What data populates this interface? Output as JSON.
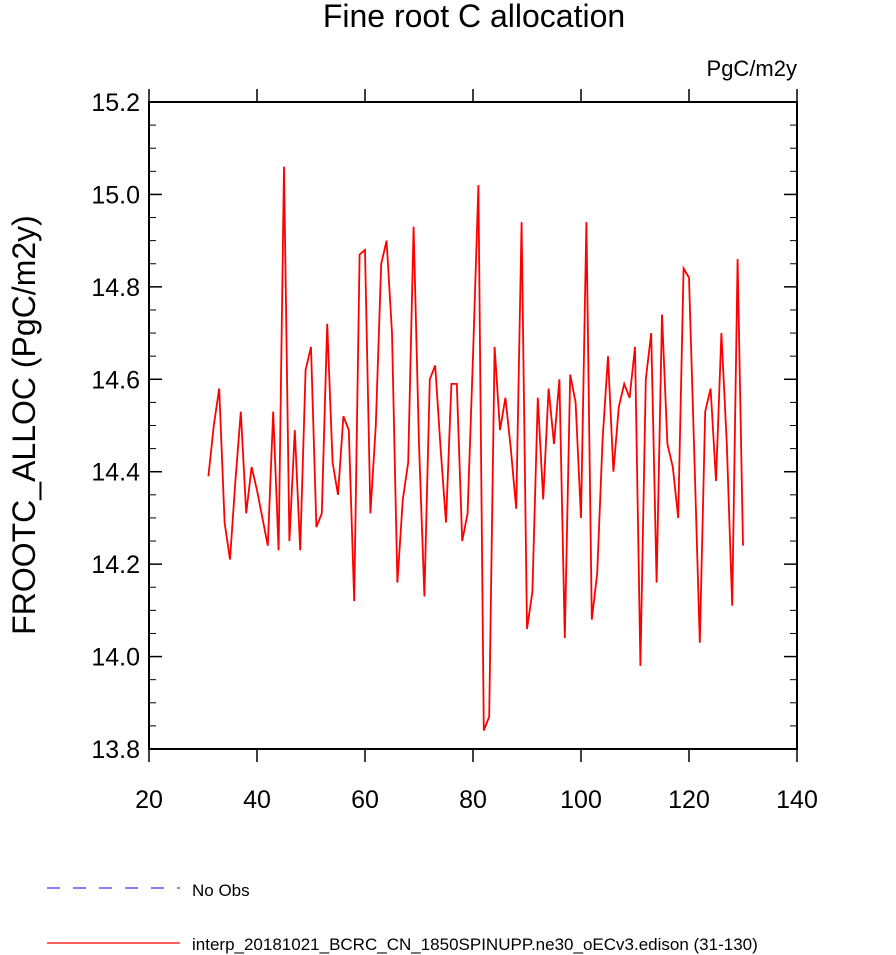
{
  "chart_data": {
    "type": "line",
    "title": "Fine root C allocation",
    "units": "PgC/m2y",
    "xlabel": "",
    "ylabel": "FROOTC_ALLOC  (PgC/m2y)",
    "xlim": [
      20,
      140
    ],
    "ylim": [
      13.8,
      15.2
    ],
    "xticks": [
      20,
      40,
      60,
      80,
      100,
      120,
      140
    ],
    "xtick_labels": [
      "20",
      "40",
      "60",
      "80",
      "100",
      "120",
      "140"
    ],
    "yticks": [
      13.8,
      14.0,
      14.2,
      14.4,
      14.6,
      14.8,
      15.0,
      15.2
    ],
    "ytick_labels": [
      "13.8",
      "14.0",
      "14.2",
      "14.4",
      "14.6",
      "14.8",
      "15.0",
      "15.2"
    ],
    "grid": false,
    "legend_position": "bottom-left",
    "series": [
      {
        "name": "interp_20181021_BCRC_CN_1850SPINUPP.ne30_oECv3.edison (31-130)",
        "color": "#ff0000",
        "style": "solid",
        "x": [
          31,
          32,
          33,
          34,
          35,
          36,
          37,
          38,
          39,
          40,
          41,
          42,
          43,
          44,
          45,
          46,
          47,
          48,
          49,
          50,
          51,
          52,
          53,
          54,
          55,
          56,
          57,
          58,
          59,
          60,
          61,
          62,
          63,
          64,
          65,
          66,
          67,
          68,
          69,
          70,
          71,
          72,
          73,
          74,
          75,
          76,
          77,
          78,
          79,
          80,
          81,
          82,
          83,
          84,
          85,
          86,
          87,
          88,
          89,
          90,
          91,
          92,
          93,
          94,
          95,
          96,
          97,
          98,
          99,
          100,
          101,
          102,
          103,
          104,
          105,
          106,
          107,
          108,
          109,
          110,
          111,
          112,
          113,
          114,
          115,
          116,
          117,
          118,
          119,
          120,
          121,
          122,
          123,
          124,
          125,
          126,
          127,
          128,
          129,
          130
        ],
        "values": [
          14.39,
          14.5,
          14.58,
          14.29,
          14.21,
          14.38,
          14.53,
          14.31,
          14.41,
          14.36,
          14.3,
          14.24,
          14.53,
          14.23,
          15.06,
          14.25,
          14.49,
          14.23,
          14.62,
          14.67,
          14.28,
          14.31,
          14.72,
          14.42,
          14.35,
          14.52,
          14.49,
          14.12,
          14.87,
          14.88,
          14.31,
          14.5,
          14.85,
          14.9,
          14.7,
          14.16,
          14.34,
          14.42,
          14.93,
          14.46,
          14.13,
          14.6,
          14.63,
          14.45,
          14.29,
          14.59,
          14.59,
          14.25,
          14.31,
          14.65,
          15.02,
          13.84,
          13.87,
          14.67,
          14.49,
          14.56,
          14.45,
          14.32,
          14.94,
          14.06,
          14.14,
          14.56,
          14.34,
          14.58,
          14.46,
          14.6,
          14.04,
          14.61,
          14.55,
          14.3,
          14.94,
          14.08,
          14.18,
          14.47,
          14.65,
          14.4,
          14.54,
          14.59,
          14.56,
          14.67,
          13.98,
          14.6,
          14.7,
          14.16,
          14.74,
          14.46,
          14.41,
          14.3,
          14.84,
          14.82,
          14.43,
          14.03,
          14.53,
          14.58,
          14.38,
          14.7,
          14.46,
          14.11,
          14.86,
          14.24
        ]
      }
    ],
    "legend": [
      {
        "label": "No Obs",
        "color": "#3333ff",
        "style": "dashed"
      },
      {
        "label": "interp_20181021_BCRC_CN_1850SPINUPP.ne30_oECv3.edison (31-130)",
        "color": "#ff0000",
        "style": "solid"
      }
    ]
  }
}
